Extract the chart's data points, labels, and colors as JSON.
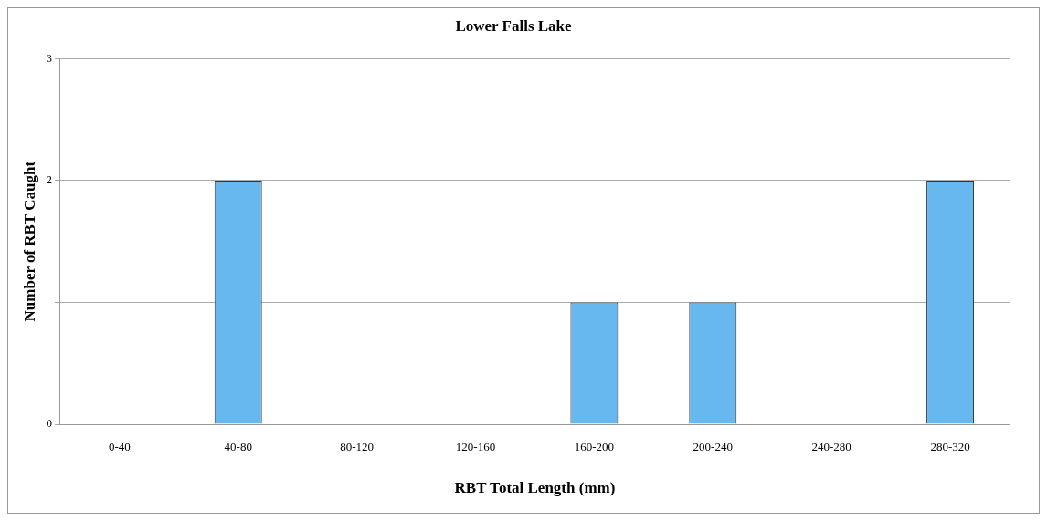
{
  "chart_data": {
    "type": "bar",
    "title": "Lower Falls Lake",
    "xlabel": "RBT Total Length (mm)",
    "ylabel": "Number of RBT Caught",
    "categories": [
      "0-40",
      "40-80",
      "80-120",
      "120-160",
      "160-200",
      "200-240",
      "240-280",
      "280-320"
    ],
    "values": [
      0,
      2,
      0,
      0,
      1,
      1,
      0,
      2
    ],
    "color": "#66b8ee",
    "ylim": [
      0,
      3
    ],
    "yticks": [
      0,
      {
        "value": 1,
        "label": null
      },
      2,
      3
    ],
    "grid": "y"
  }
}
